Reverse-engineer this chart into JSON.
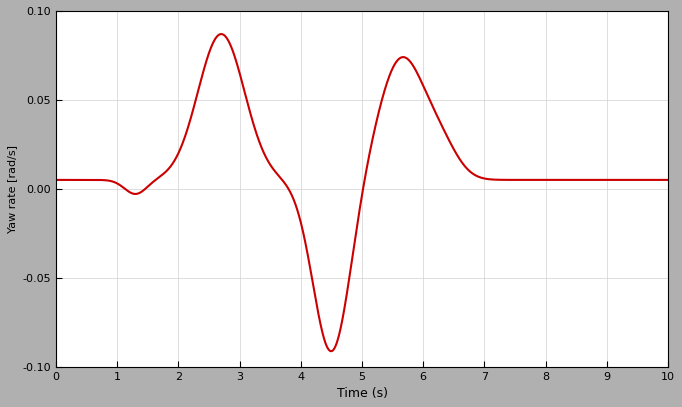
{
  "title": "",
  "xlabel": "Time (s)",
  "ylabel": "Yaw rate [rad/s]",
  "xlim": [
    0,
    10
  ],
  "ylim": [
    -0.1,
    0.1
  ],
  "yticks": [
    -0.1,
    -0.05,
    0.0,
    0.05,
    0.1
  ],
  "xticks": [
    0,
    1,
    2,
    3,
    4,
    5,
    6,
    7,
    8,
    9,
    10
  ],
  "line_color": "#cc0000",
  "line_width": 1.5,
  "background_color": "#ffffff",
  "figure_bg": "#b0b0b0"
}
